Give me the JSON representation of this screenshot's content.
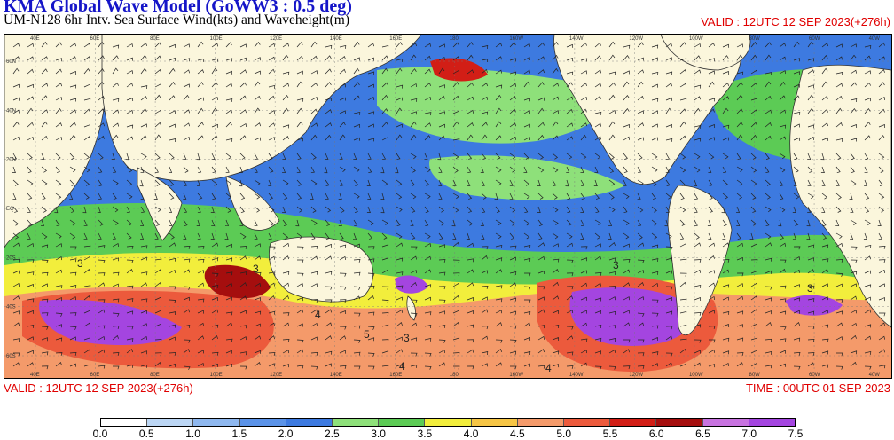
{
  "header": {
    "title": "KMA  Global Wave Model (GoWW3 : 0.5 deg)",
    "subtitle": "UM-N128  6hr Intv. Sea Surface Wind(kts) and Waveheight(m)",
    "valid_top": "VALID : 12UTC 12 SEP 2023(+276h)"
  },
  "footer": {
    "valid": "VALID : 12UTC 12 SEP 2023(+276h)",
    "time": "TIME : 00UTC 01 SEP 2023"
  },
  "map": {
    "lon_ticks": [
      "40E",
      "60E",
      "80E",
      "100E",
      "120E",
      "140E",
      "160E",
      "180",
      "160W",
      "140W",
      "120W",
      "100W",
      "80W",
      "60W",
      "40W"
    ],
    "lat_ticks": [
      "60N",
      "40N",
      "20N",
      "EQ",
      "20S",
      "40S",
      "60S"
    ],
    "contour_labels": [
      "3",
      "3",
      "4",
      "5",
      "3",
      "3",
      "4",
      "3",
      "4"
    ],
    "colors": {
      "land": "#fbf6dc",
      "c05": "#bcd6f4",
      "c10": "#8fb8ef",
      "c15": "#5b93e8",
      "c20": "#3d7ae0",
      "c25": "#8ee07a",
      "c30": "#5ccb55",
      "c35": "#f2ee3c",
      "c40": "#f6c545",
      "c45": "#f49a6a",
      "c50": "#ec5a3c",
      "c55": "#d21e16",
      "c60": "#a50e0e",
      "c65": "#c873e0",
      "c70": "#a445e0",
      "c75": "#8a20d8"
    }
  },
  "colorbar": {
    "labels": [
      "0.0",
      "0.5",
      "1.0",
      "1.5",
      "2.0",
      "2.5",
      "3.0",
      "3.5",
      "4.0",
      "4.5",
      "5.0",
      "5.5",
      "6.0",
      "6.5",
      "7.0",
      "7.5"
    ],
    "colors": [
      "#ffffff",
      "#bcd6f4",
      "#8fb8ef",
      "#5b93e8",
      "#3d7ae0",
      "#8ee07a",
      "#5ccb55",
      "#f2ee3c",
      "#f6c545",
      "#f49a6a",
      "#ec5a3c",
      "#d21e16",
      "#a50e0e",
      "#c873e0",
      "#a445e0"
    ]
  }
}
